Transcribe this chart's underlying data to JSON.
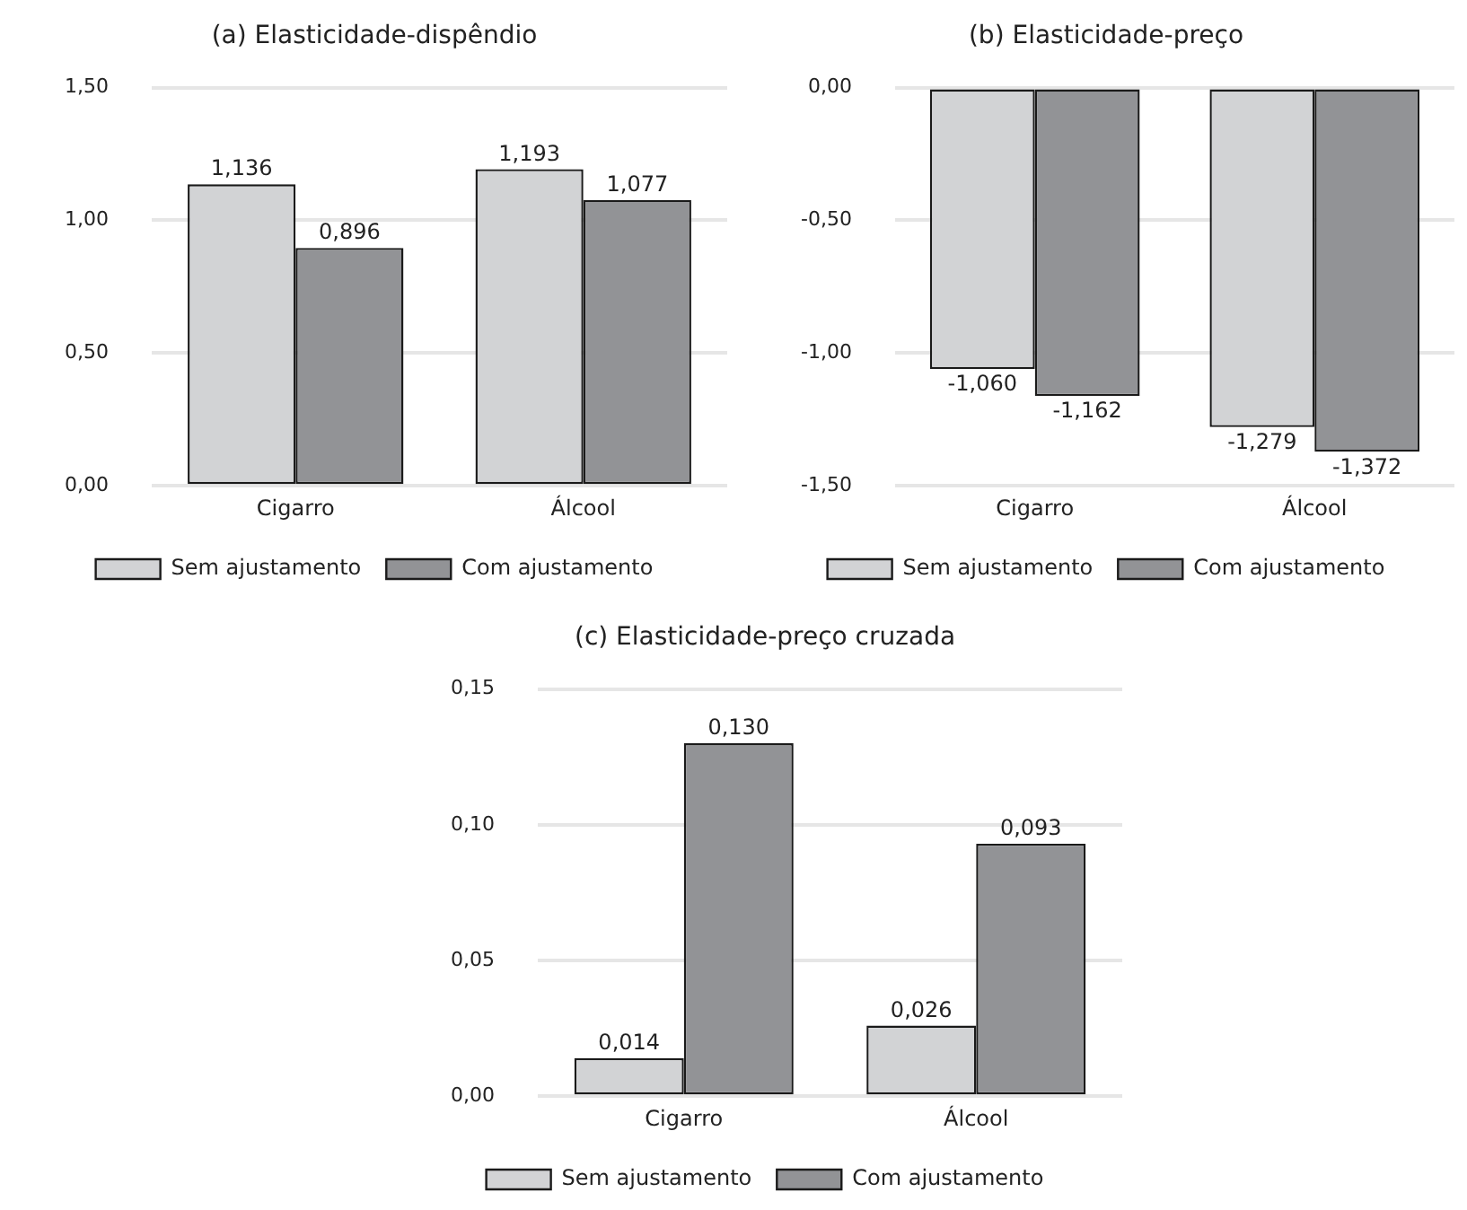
{
  "chart_data": [
    {
      "type": "bar",
      "title": "(a) Elasticidade-dispêndio",
      "categories": [
        "Cigarro",
        "Álcool"
      ],
      "series": [
        {
          "name": "Sem ajustamento",
          "color": "#d2d3d5",
          "values": [
            1.136,
            1.193
          ],
          "value_labels": [
            "1,136",
            "1,193"
          ]
        },
        {
          "name": "Com ajustamento",
          "color": "#929396",
          "values": [
            0.896,
            1.077
          ],
          "value_labels": [
            "0,896",
            "1,077"
          ]
        }
      ],
      "ylim": [
        0,
        1.5
      ],
      "yticks": [
        {
          "value": 0,
          "label": "0,00"
        },
        {
          "value": 0.5,
          "label": "0,50"
        },
        {
          "value": 1,
          "label": "1,00"
        },
        {
          "value": 1.5,
          "label": "1,50"
        }
      ],
      "grid": "y",
      "legend": "bottom"
    },
    {
      "type": "bar",
      "title": "(b) Elasticidade-preço",
      "categories": [
        "Cigarro",
        "Álcool"
      ],
      "series": [
        {
          "name": "Sem ajustamento",
          "color": "#d2d3d5",
          "values": [
            -1.06,
            -1.279
          ],
          "value_labels": [
            "-1,060",
            "-1,279"
          ]
        },
        {
          "name": "Com ajustamento",
          "color": "#929396",
          "values": [
            -1.162,
            -1.372
          ],
          "value_labels": [
            "-1,162",
            "-1,372"
          ]
        }
      ],
      "ylim": [
        -1.5,
        0
      ],
      "yticks": [
        {
          "value": -1.5,
          "label": "-1,50"
        },
        {
          "value": -1,
          "label": "-1,00"
        },
        {
          "value": -0.5,
          "label": "-0,50"
        },
        {
          "value": 0,
          "label": "0,00"
        }
      ],
      "grid": "y",
      "legend": "bottom"
    },
    {
      "type": "bar",
      "title": "(c) Elasticidade-preço cruzada",
      "categories": [
        "Cigarro",
        "Álcool"
      ],
      "series": [
        {
          "name": "Sem ajustamento",
          "color": "#d2d3d5",
          "values": [
            0.014,
            0.026
          ],
          "value_labels": [
            "0,014",
            "0,026"
          ]
        },
        {
          "name": "Com ajustamento",
          "color": "#929396",
          "values": [
            0.13,
            0.093
          ],
          "value_labels": [
            "0,130",
            "0,093"
          ]
        }
      ],
      "ylim": [
        0,
        0.15
      ],
      "yticks": [
        {
          "value": 0,
          "label": "0,00"
        },
        {
          "value": 0.05,
          "label": "0,05"
        },
        {
          "value": 0.1,
          "label": "0,10"
        },
        {
          "value": 0.15,
          "label": "0,15"
        }
      ],
      "grid": "y",
      "legend": "bottom"
    }
  ]
}
